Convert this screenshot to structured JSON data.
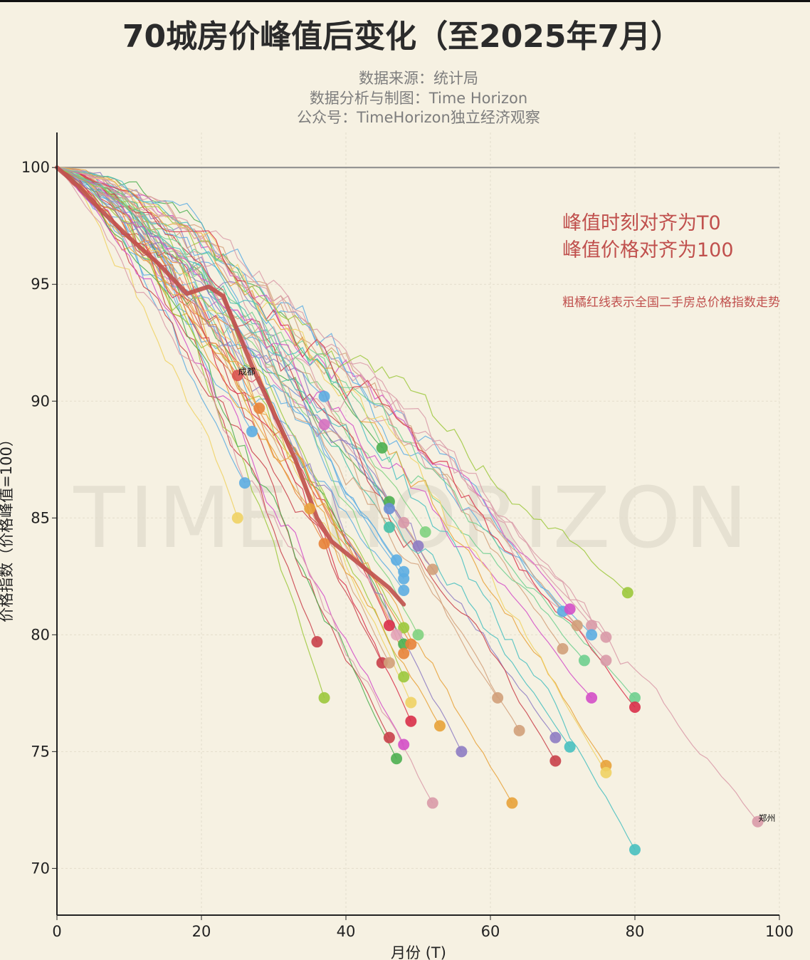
{
  "chart_data": {
    "type": "line",
    "title": "70城房价峰值后变化（至2025年7月）",
    "subtitles": [
      "数据来源：统计局",
      "数据分析与制图：Time Horizon",
      "公众号：TimeHorizon独立经济观察"
    ],
    "xlabel": "月份 (T)",
    "ylabel": "价格指数（价格峰值=100）",
    "xlim": [
      0,
      100
    ],
    "ylim": [
      68,
      101.5
    ],
    "xticks": [
      0,
      20,
      40,
      60,
      80,
      100
    ],
    "yticks": [
      70,
      75,
      80,
      85,
      90,
      95,
      100
    ],
    "grid": true,
    "reference_line": 100,
    "annotations": [
      "峰值时刻对齐为T0",
      "峰值价格对齐为100",
      "粗橘红线表示全国二手房总价格指数走势"
    ],
    "watermark": "TIME HORIZON",
    "national_series": {
      "color": "#c0504d",
      "x": [
        0,
        3,
        6,
        10,
        14,
        18,
        21,
        23,
        25,
        27,
        30,
        33,
        36,
        38,
        42,
        46,
        48
      ],
      "y": [
        100,
        99.2,
        98.2,
        97.0,
        95.9,
        94.6,
        94.9,
        94.5,
        93.0,
        91.5,
        89.5,
        87.5,
        85.0,
        84.0,
        83.0,
        82.0,
        81.3
      ]
    },
    "city_endpoints": [
      {
        "label": "成都",
        "x": 25,
        "y": 91.1,
        "color": "#d9534f"
      },
      {
        "x": 28,
        "y": 89.7,
        "color": "#e8833a"
      },
      {
        "x": 37,
        "y": 90.2,
        "color": "#5dade2"
      },
      {
        "x": 27,
        "y": 88.7,
        "color": "#5dade2"
      },
      {
        "x": 37,
        "y": 89.0,
        "color": "#d670c0"
      },
      {
        "x": 45,
        "y": 88.0,
        "color": "#4caf50"
      },
      {
        "x": 26,
        "y": 86.5,
        "color": "#5dade2"
      },
      {
        "x": 25,
        "y": 85.0,
        "color": "#f0d264"
      },
      {
        "x": 35,
        "y": 85.4,
        "color": "#e8a23a"
      },
      {
        "x": 37,
        "y": 83.9,
        "color": "#e8833a"
      },
      {
        "x": 46,
        "y": 85.7,
        "color": "#4caf50"
      },
      {
        "x": 46,
        "y": 85.4,
        "color": "#6c8fd6"
      },
      {
        "x": 46,
        "y": 84.6,
        "color": "#48c0a8"
      },
      {
        "x": 48,
        "y": 84.8,
        "color": "#d99aa8"
      },
      {
        "x": 51,
        "y": 84.4,
        "color": "#7fd17f"
      },
      {
        "x": 50,
        "y": 83.8,
        "color": "#8e7cc3"
      },
      {
        "x": 47,
        "y": 83.2,
        "color": "#5dade2"
      },
      {
        "x": 48,
        "y": 82.7,
        "color": "#5dade2"
      },
      {
        "x": 48,
        "y": 82.4,
        "color": "#5dade2"
      },
      {
        "x": 48,
        "y": 81.9,
        "color": "#5dade2"
      },
      {
        "x": 52,
        "y": 82.8,
        "color": "#d2a07a"
      },
      {
        "x": 36,
        "y": 79.7,
        "color": "#c9404a"
      },
      {
        "x": 37,
        "y": 77.3,
        "color": "#9cc83c"
      },
      {
        "x": 46,
        "y": 80.4,
        "color": "#d9304a"
      },
      {
        "x": 48,
        "y": 80.3,
        "color": "#9cc83c"
      },
      {
        "x": 50,
        "y": 80.0,
        "color": "#7fd17f"
      },
      {
        "x": 47,
        "y": 80.0,
        "color": "#e3a3b8"
      },
      {
        "x": 48,
        "y": 79.6,
        "color": "#4caf50"
      },
      {
        "x": 49,
        "y": 79.6,
        "color": "#e8833a"
      },
      {
        "x": 48,
        "y": 79.2,
        "color": "#e8833a"
      },
      {
        "x": 45,
        "y": 78.8,
        "color": "#c9404a"
      },
      {
        "x": 46,
        "y": 78.8,
        "color": "#d2a07a"
      },
      {
        "x": 48,
        "y": 78.2,
        "color": "#9cc83c"
      },
      {
        "x": 49,
        "y": 77.1,
        "color": "#f0d264"
      },
      {
        "x": 49,
        "y": 76.3,
        "color": "#d9304a"
      },
      {
        "x": 53,
        "y": 76.1,
        "color": "#e8a23a"
      },
      {
        "x": 46,
        "y": 75.6,
        "color": "#c9404a"
      },
      {
        "x": 48,
        "y": 75.3,
        "color": "#d44fc8"
      },
      {
        "x": 47,
        "y": 74.7,
        "color": "#4caf50"
      },
      {
        "x": 56,
        "y": 75.0,
        "color": "#8e7cc3"
      },
      {
        "x": 52,
        "y": 72.8,
        "color": "#d99aa8"
      },
      {
        "x": 61,
        "y": 77.3,
        "color": "#d2a07a"
      },
      {
        "x": 64,
        "y": 75.9,
        "color": "#d2a07a"
      },
      {
        "x": 63,
        "y": 72.8,
        "color": "#e8a23a"
      },
      {
        "x": 69,
        "y": 75.6,
        "color": "#8e7cc3"
      },
      {
        "x": 69,
        "y": 74.6,
        "color": "#c9404a"
      },
      {
        "x": 71,
        "y": 75.2,
        "color": "#48c0c0"
      },
      {
        "x": 70,
        "y": 79.4,
        "color": "#d2a07a"
      },
      {
        "x": 70,
        "y": 81.0,
        "color": "#5dade2"
      },
      {
        "x": 71,
        "y": 81.1,
        "color": "#d44fc8"
      },
      {
        "x": 72,
        "y": 80.4,
        "color": "#d2a07a"
      },
      {
        "x": 74,
        "y": 80.4,
        "color": "#d99aa8"
      },
      {
        "x": 74,
        "y": 80.0,
        "color": "#5dade2"
      },
      {
        "x": 76,
        "y": 79.9,
        "color": "#d99aa8"
      },
      {
        "x": 73,
        "y": 78.9,
        "color": "#6fcf8f"
      },
      {
        "x": 76,
        "y": 78.9,
        "color": "#d99aa8"
      },
      {
        "x": 74,
        "y": 77.3,
        "color": "#d44fc8"
      },
      {
        "x": 76,
        "y": 74.4,
        "color": "#e8a23a"
      },
      {
        "x": 76,
        "y": 74.1,
        "color": "#f0d264"
      },
      {
        "x": 79,
        "y": 81.8,
        "color": "#9cc83c"
      },
      {
        "x": 80,
        "y": 77.3,
        "color": "#6fcf8f"
      },
      {
        "x": 80,
        "y": 76.9,
        "color": "#d9304a"
      },
      {
        "x": 80,
        "y": 70.8,
        "color": "#48c0c0"
      },
      {
        "label": "郑州",
        "x": 97,
        "y": 72.0,
        "color": "#d99aa8"
      }
    ]
  }
}
